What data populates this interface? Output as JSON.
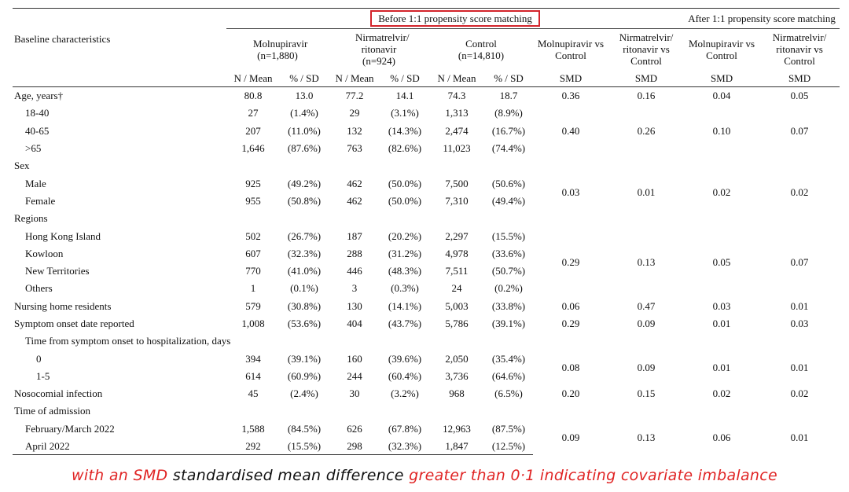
{
  "table": {
    "header": {
      "baseline": "Baseline characteristics",
      "before": "Before 1:1 propensity score matching",
      "after": "After 1:1 propensity score matching",
      "groups": {
        "mol": "Molnupiravir (n=1,880)",
        "nir": "Nirmatrelvir/ ritonavir (n=924)",
        "ctrl": "Control (n=14,810)",
        "b_mol_vs": "Molnupiravir vs Control",
        "b_nir_vs": "Nirmatrelvir/ ritonavir vs Control",
        "a_mol_vs": "Molnupiravir vs Control",
        "a_nir_vs": "Nirmatrelvir/ ritonavir vs Control"
      },
      "sub": {
        "n_mean": "N / Mean",
        "pct_sd": "% / SD",
        "smd": "SMD"
      }
    },
    "rows": {
      "age": {
        "label": "Age, years†",
        "mol_n": "80.8",
        "mol_p": "13.0",
        "nir_n": "77.2",
        "nir_p": "14.1",
        "ctrl_n": "74.3",
        "ctrl_p": "18.7",
        "smd1": "0.36",
        "smd2": "0.16",
        "smd3": "0.04",
        "smd4": "0.05"
      },
      "age_18_40": {
        "label": "18-40",
        "mol_n": "27",
        "mol_p": "(1.4%)",
        "nir_n": "29",
        "nir_p": "(3.1%)",
        "ctrl_n": "1,313",
        "ctrl_p": "(8.9%)"
      },
      "age_40_65": {
        "label": "40-65",
        "mol_n": "207",
        "mol_p": "(11.0%)",
        "nir_n": "132",
        "nir_p": "(14.3%)",
        "ctrl_n": "2,474",
        "ctrl_p": "(16.7%)"
      },
      "age_gt65": {
        "label": ">65",
        "mol_n": "1,646",
        "mol_p": "(87.6%)",
        "nir_n": "763",
        "nir_p": "(82.6%)",
        "ctrl_n": "11,023",
        "ctrl_p": "(74.4%)"
      },
      "age_group_smd": {
        "smd1": "0.40",
        "smd2": "0.26",
        "smd3": "0.10",
        "smd4": "0.07"
      },
      "sex": {
        "label": "Sex"
      },
      "male": {
        "label": "Male",
        "mol_n": "925",
        "mol_p": "(49.2%)",
        "nir_n": "462",
        "nir_p": "(50.0%)",
        "ctrl_n": "7,500",
        "ctrl_p": "(50.6%)"
      },
      "female": {
        "label": "Female",
        "mol_n": "955",
        "mol_p": "(50.8%)",
        "nir_n": "462",
        "nir_p": "(50.0%)",
        "ctrl_n": "7,310",
        "ctrl_p": "(49.4%)"
      },
      "sex_smd": {
        "smd1": "0.03",
        "smd2": "0.01",
        "smd3": "0.02",
        "smd4": "0.02"
      },
      "regions": {
        "label": "Regions"
      },
      "hki": {
        "label": "Hong Kong Island",
        "mol_n": "502",
        "mol_p": "(26.7%)",
        "nir_n": "187",
        "nir_p": "(20.2%)",
        "ctrl_n": "2,297",
        "ctrl_p": "(15.5%)"
      },
      "kowloon": {
        "label": "Kowloon",
        "mol_n": "607",
        "mol_p": "(32.3%)",
        "nir_n": "288",
        "nir_p": "(31.2%)",
        "ctrl_n": "4,978",
        "ctrl_p": "(33.6%)"
      },
      "nt": {
        "label": "New Territories",
        "mol_n": "770",
        "mol_p": "(41.0%)",
        "nir_n": "446",
        "nir_p": "(48.3%)",
        "ctrl_n": "7,511",
        "ctrl_p": "(50.7%)"
      },
      "others": {
        "label": "Others",
        "mol_n": "1",
        "mol_p": "(0.1%)",
        "nir_n": "3",
        "nir_p": "(0.3%)",
        "ctrl_n": "24",
        "ctrl_p": "(0.2%)"
      },
      "regions_smd": {
        "smd1": "0.29",
        "smd2": "0.13",
        "smd3": "0.05",
        "smd4": "0.07"
      },
      "nursing": {
        "label": "Nursing home residents",
        "mol_n": "579",
        "mol_p": "(30.8%)",
        "nir_n": "130",
        "nir_p": "(14.1%)",
        "ctrl_n": "5,003",
        "ctrl_p": "(33.8%)",
        "smd1": "0.06",
        "smd2": "0.47",
        "smd3": "0.03",
        "smd4": "0.01"
      },
      "symptom": {
        "label": "Symptom onset date reported",
        "mol_n": "1,008",
        "mol_p": "(53.6%)",
        "nir_n": "404",
        "nir_p": "(43.7%)",
        "ctrl_n": "5,786",
        "ctrl_p": "(39.1%)",
        "smd1": "0.29",
        "smd2": "0.09",
        "smd3": "0.01",
        "smd4": "0.03"
      },
      "time_onset": {
        "label": "Time from symptom onset to hospitalization, days"
      },
      "t0": {
        "label": "0",
        "mol_n": "394",
        "mol_p": "(39.1%)",
        "nir_n": "160",
        "nir_p": "(39.6%)",
        "ctrl_n": "2,050",
        "ctrl_p": "(35.4%)"
      },
      "t15": {
        "label": "1-5",
        "mol_n": "614",
        "mol_p": "(60.9%)",
        "nir_n": "244",
        "nir_p": "(60.4%)",
        "ctrl_n": "3,736",
        "ctrl_p": "(64.6%)"
      },
      "time_smd": {
        "smd1": "0.08",
        "smd2": "0.09",
        "smd3": "0.01",
        "smd4": "0.01"
      },
      "noso": {
        "label": "Nosocomial infection",
        "mol_n": "45",
        "mol_p": "(2.4%)",
        "nir_n": "30",
        "nir_p": "(3.2%)",
        "ctrl_n": "968",
        "ctrl_p": "(6.5%)",
        "smd1": "0.20",
        "smd2": "0.15",
        "smd3": "0.02",
        "smd4": "0.02"
      },
      "admission": {
        "label": "Time of admission"
      },
      "febmar": {
        "label": "February/March 2022",
        "mol_n": "1,588",
        "mol_p": "(84.5%)",
        "nir_n": "626",
        "nir_p": "(67.8%)",
        "ctrl_n": "12,963",
        "ctrl_p": "(87.5%)"
      },
      "april": {
        "label": "April 2022",
        "mol_n": "292",
        "mol_p": "(15.5%)",
        "nir_n": "298",
        "nir_p": "(32.3%)",
        "ctrl_n": "1,847",
        "ctrl_p": "(12.5%)"
      },
      "adm_smd": {
        "smd1": "0.09",
        "smd2": "0.13",
        "smd3": "0.06",
        "smd4": "0.01"
      }
    }
  },
  "caption": {
    "part1": "with an SMD",
    "part2": "standardised mean difference",
    "part3": "greater than 0·1 indicating covariate imbalance"
  },
  "colors": {
    "highlight": "#d3232a",
    "caption_red": "#e02424"
  }
}
